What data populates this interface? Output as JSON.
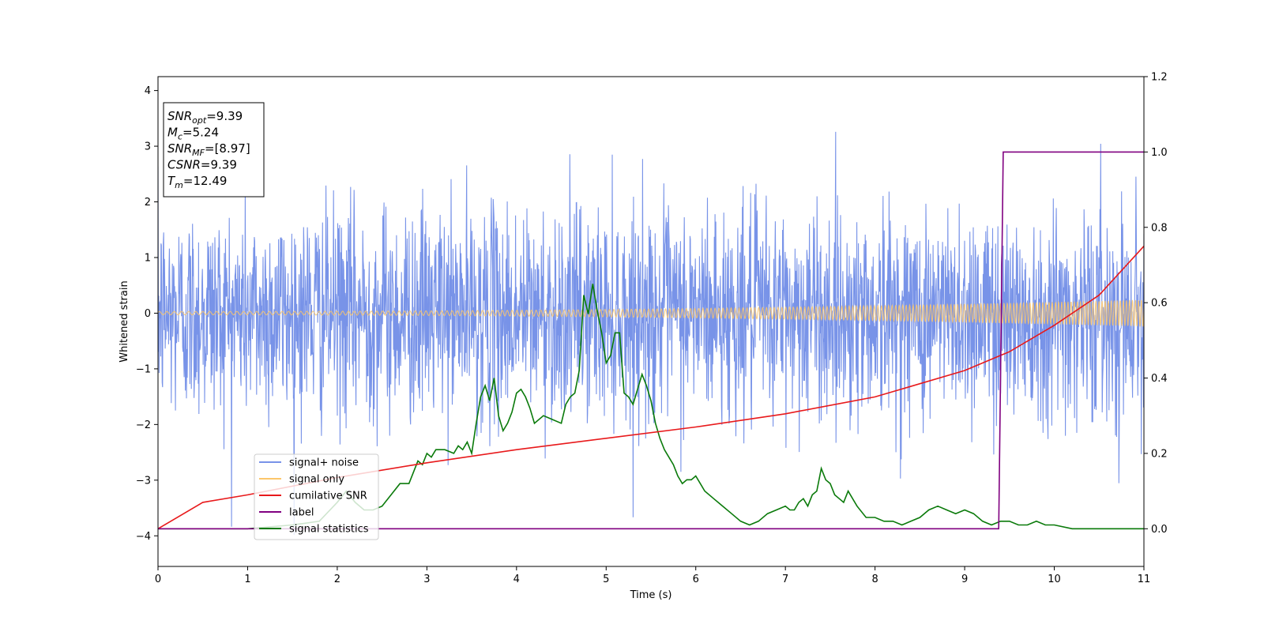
{
  "chart_data": {
    "type": "line",
    "xlabel": "Time (s)",
    "ylabel": "Whitened strain",
    "xlim": [
      0,
      11
    ],
    "ylim": [
      -4.55,
      4.25
    ],
    "y2lim": [
      -0.1,
      1.2
    ],
    "xticks": [
      0,
      1,
      2,
      3,
      4,
      5,
      6,
      7,
      8,
      9,
      10,
      11
    ],
    "yticks": [
      -4,
      -3,
      -2,
      -1,
      0,
      1,
      2,
      3,
      4
    ],
    "y2ticks": [
      0.0,
      0.2,
      0.4,
      0.6,
      0.8,
      1.0,
      1.2
    ],
    "y2tick_labels": [
      "0.0",
      "0.2",
      "0.4",
      "0.6",
      "0.8",
      "1.0",
      "1.2"
    ],
    "grid": false,
    "legend_placement": "lower-left",
    "annotation": {
      "lines": [
        {
          "main": "SNR",
          "sub": "opt",
          "value": "=9.39"
        },
        {
          "main": "M",
          "sub": "c",
          "value": "=5.24"
        },
        {
          "main": "SNR",
          "sub": "MF",
          "value": "=[8.97]"
        },
        {
          "main": "CSNR",
          "sub": "",
          "value": "=9.39"
        },
        {
          "main": "T",
          "sub": "m",
          "value": "=12.49"
        }
      ]
    },
    "series": [
      {
        "name": "signal+ noise",
        "color": "#7893e8",
        "axis": "left",
        "kind": "noise",
        "sigma": 1.0,
        "typical_peak": 2.3,
        "max": 3.8,
        "min": -4.15
      },
      {
        "name": "signal only",
        "color": "#fcc66a",
        "axis": "left",
        "kind": "chirp",
        "amplitude_start": 0.03,
        "amplitude_end": 0.24
      },
      {
        "name": "cumilative SNR",
        "color": "#e8191b",
        "axis": "right",
        "x": [
          0,
          0.5,
          1,
          2,
          3,
          4,
          5,
          6,
          7,
          8,
          9,
          9.5,
          10,
          10.5,
          11
        ],
        "values": [
          0.0,
          0.07,
          0.09,
          0.136,
          0.175,
          0.21,
          0.24,
          0.27,
          0.305,
          0.35,
          0.42,
          0.47,
          0.54,
          0.62,
          0.75
        ]
      },
      {
        "name": "label",
        "color": "#800080",
        "axis": "right",
        "x": [
          0,
          9.38,
          9.43,
          11
        ],
        "values": [
          0,
          0,
          1,
          1
        ]
      },
      {
        "name": "signal statistics",
        "color": "#0a7a0a",
        "axis": "right",
        "x": [
          0,
          0.5,
          1,
          1.5,
          1.8,
          2.0,
          2.1,
          2.2,
          2.3,
          2.4,
          2.5,
          2.6,
          2.7,
          2.8,
          2.9,
          2.95,
          3.0,
          3.05,
          3.1,
          3.2,
          3.3,
          3.35,
          3.4,
          3.45,
          3.5,
          3.55,
          3.6,
          3.65,
          3.7,
          3.75,
          3.8,
          3.85,
          3.9,
          3.95,
          4.0,
          4.05,
          4.1,
          4.15,
          4.2,
          4.3,
          4.4,
          4.5,
          4.55,
          4.6,
          4.65,
          4.7,
          4.75,
          4.8,
          4.85,
          4.9,
          4.95,
          5.0,
          5.05,
          5.1,
          5.15,
          5.2,
          5.25,
          5.3,
          5.35,
          5.4,
          5.45,
          5.5,
          5.55,
          5.6,
          5.65,
          5.7,
          5.75,
          5.8,
          5.85,
          5.9,
          5.95,
          6.0,
          6.1,
          6.2,
          6.3,
          6.4,
          6.5,
          6.6,
          6.7,
          6.8,
          6.9,
          7.0,
          7.05,
          7.1,
          7.15,
          7.2,
          7.25,
          7.3,
          7.35,
          7.4,
          7.45,
          7.5,
          7.55,
          7.6,
          7.65,
          7.7,
          7.8,
          7.9,
          8.0,
          8.1,
          8.2,
          8.3,
          8.4,
          8.5,
          8.6,
          8.7,
          8.8,
          8.9,
          9.0,
          9.1,
          9.2,
          9.3,
          9.4,
          9.5,
          9.6,
          9.7,
          9.8,
          9.9,
          10.0,
          10.2,
          10.4,
          10.6,
          10.8,
          11.0
        ],
        "values": [
          0.0,
          0.0,
          0.0,
          0.01,
          0.02,
          0.07,
          0.1,
          0.07,
          0.05,
          0.05,
          0.06,
          0.09,
          0.12,
          0.12,
          0.18,
          0.17,
          0.2,
          0.19,
          0.21,
          0.21,
          0.2,
          0.22,
          0.21,
          0.23,
          0.2,
          0.28,
          0.35,
          0.38,
          0.34,
          0.4,
          0.3,
          0.26,
          0.28,
          0.31,
          0.36,
          0.37,
          0.35,
          0.32,
          0.28,
          0.3,
          0.29,
          0.28,
          0.33,
          0.35,
          0.36,
          0.42,
          0.62,
          0.57,
          0.65,
          0.58,
          0.52,
          0.44,
          0.46,
          0.52,
          0.52,
          0.36,
          0.35,
          0.33,
          0.37,
          0.41,
          0.38,
          0.34,
          0.28,
          0.24,
          0.21,
          0.19,
          0.17,
          0.14,
          0.12,
          0.13,
          0.13,
          0.14,
          0.1,
          0.08,
          0.06,
          0.04,
          0.02,
          0.01,
          0.02,
          0.04,
          0.05,
          0.06,
          0.05,
          0.05,
          0.07,
          0.08,
          0.06,
          0.09,
          0.1,
          0.16,
          0.13,
          0.12,
          0.09,
          0.08,
          0.07,
          0.1,
          0.06,
          0.03,
          0.03,
          0.02,
          0.02,
          0.01,
          0.02,
          0.03,
          0.05,
          0.06,
          0.05,
          0.04,
          0.05,
          0.04,
          0.02,
          0.01,
          0.02,
          0.02,
          0.01,
          0.01,
          0.02,
          0.01,
          0.01,
          0.0,
          0.0,
          0.0,
          0.0,
          0.0
        ]
      }
    ]
  }
}
